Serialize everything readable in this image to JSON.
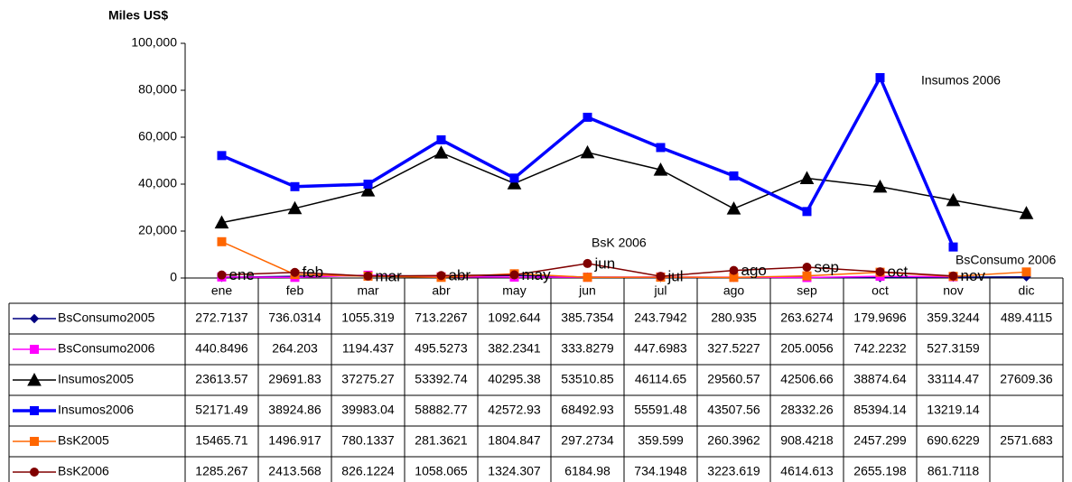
{
  "chart_data": {
    "type": "line",
    "y_label": "Miles US$",
    "categories": [
      "ene",
      "feb",
      "mar",
      "abr",
      "may",
      "jun",
      "jul",
      "ago",
      "sep",
      "oct",
      "nov",
      "dic"
    ],
    "ylim": [
      0,
      100000
    ],
    "yticks": [
      0,
      {
        "value": 20000,
        "label": "20,000"
      },
      {
        "value": 40000,
        "label": "40,000"
      },
      {
        "value": 60000,
        "label": "60,000"
      },
      {
        "value": 80000,
        "label": "80,000"
      },
      {
        "value": 100000,
        "label": "100,000"
      }
    ],
    "grid": false,
    "annotations": [
      "Insumos 2006",
      "BsK 2006",
      "BsConsumo 2006"
    ],
    "series": [
      {
        "name": "BsConsumo2005",
        "color": "#000080",
        "marker": "diamond",
        "width": 1.5,
        "values": [
          272.7137,
          736.0314,
          1055.319,
          713.2267,
          1092.644,
          385.7354,
          243.7942,
          280.935,
          263.6274,
          179.9696,
          359.3244,
          489.4115
        ]
      },
      {
        "name": "BsConsumo2006",
        "color": "#ff00ff",
        "marker": "square",
        "width": 1.5,
        "values": [
          440.8496,
          264.203,
          1194.437,
          495.5273,
          382.2341,
          333.8279,
          447.6983,
          327.5227,
          205.0056,
          742.2232,
          527.3159,
          null
        ]
      },
      {
        "name": "Insumos2005",
        "color": "#000000",
        "marker": "triangle",
        "width": 1.5,
        "values": [
          23613.57,
          29691.83,
          37275.27,
          53392.74,
          40295.38,
          53510.85,
          46114.65,
          29560.57,
          42506.66,
          38874.64,
          33114.47,
          27609.36
        ]
      },
      {
        "name": "Insumos2006",
        "color": "#0000ff",
        "marker": "square",
        "width": 3.5,
        "values": [
          52171.49,
          38924.86,
          39983.04,
          58882.77,
          42572.93,
          68492.93,
          55591.48,
          43507.56,
          28332.26,
          85394.14,
          13219.14,
          null
        ]
      },
      {
        "name": "BsK2005",
        "color": "#ff6600",
        "marker": "square",
        "width": 1.5,
        "values": [
          15465.71,
          1496.917,
          780.1337,
          281.3621,
          1804.847,
          297.2734,
          359.599,
          260.3962,
          908.4218,
          2457.299,
          690.6229,
          2571.683
        ]
      },
      {
        "name": "BsK2006",
        "color": "#800000",
        "marker": "circle",
        "width": 1.5,
        "point_labels": true,
        "values": [
          1285.267,
          2413.568,
          826.1224,
          1058.065,
          1324.307,
          6184.98,
          734.1948,
          3223.619,
          4614.613,
          2655.198,
          861.7118,
          null
        ]
      }
    ]
  }
}
